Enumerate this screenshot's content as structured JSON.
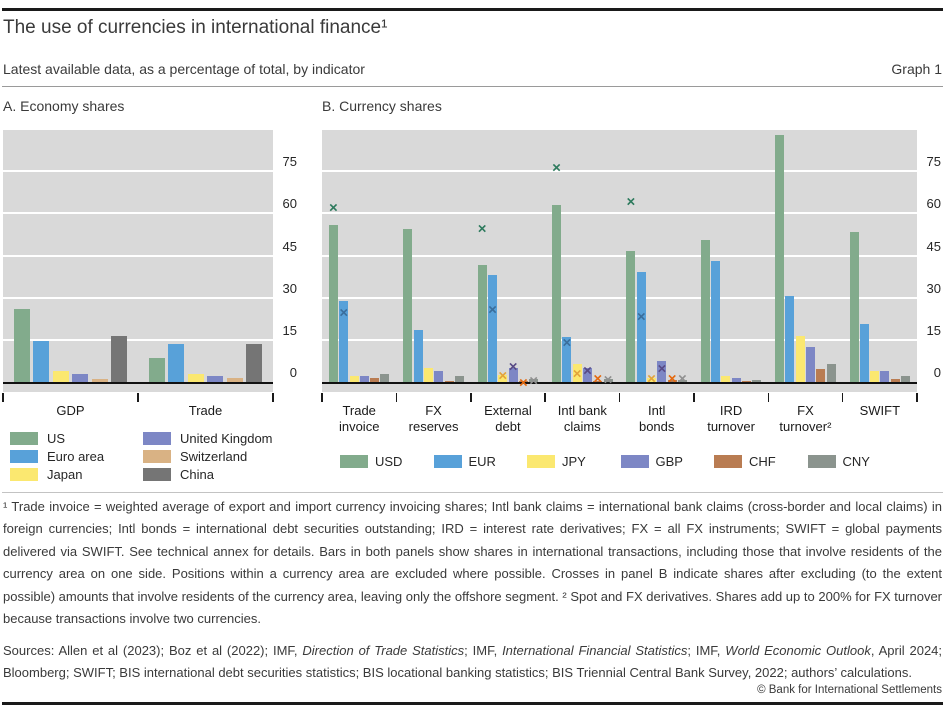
{
  "header": {
    "title": "The use of currencies in international finance¹",
    "subtitle": "Latest available data, as a percentage of total, by indicator",
    "graph_label": "Graph 1"
  },
  "chart_data": [
    {
      "type": "bar",
      "panel": "A",
      "title": "A. Economy shares",
      "categories": [
        "GDP",
        "Trade"
      ],
      "series": [
        {
          "name": "US",
          "color": "#82ab8c",
          "values": [
            26,
            8.5
          ]
        },
        {
          "name": "Euro area",
          "color": "#58a1d9",
          "values": [
            14.5,
            13.5
          ]
        },
        {
          "name": "Japan",
          "color": "#fbe870",
          "values": [
            4,
            3
          ]
        },
        {
          "name": "United Kingdom",
          "color": "#7d87c5",
          "values": [
            3,
            2
          ]
        },
        {
          "name": "Switzerland",
          "color": "#d9b284",
          "values": [
            1,
            1.5
          ]
        },
        {
          "name": "China",
          "color": "#757575",
          "values": [
            16.5,
            13.5
          ]
        }
      ],
      "ylabel": "",
      "ylim": [
        0,
        90
      ],
      "yticks": [
        0,
        15,
        30,
        45,
        60,
        75
      ],
      "grid": true,
      "legend_position": "below-two-columns"
    },
    {
      "type": "bar",
      "panel": "B",
      "title": "B. Currency shares",
      "categories": [
        "Trade invoice",
        "FX reserves",
        "External debt",
        "Intl bank claims",
        "Intl bonds",
        "IRD turnover",
        "FX turnover²",
        "SWIFT"
      ],
      "category_label_lines": [
        [
          "Trade",
          "invoice"
        ],
        [
          "FX",
          "reserves"
        ],
        [
          "External",
          "debt"
        ],
        [
          "Intl bank",
          "claims"
        ],
        [
          "Intl",
          "bonds"
        ],
        [
          "IRD",
          "turnover"
        ],
        [
          "FX",
          "turnover²"
        ],
        [
          "SWIFT"
        ]
      ],
      "series": [
        {
          "name": "USD",
          "color": "#82ab8c",
          "cross_color": "#2d7a5d",
          "values": [
            56,
            54.5,
            41.5,
            63,
            46.5,
            50.5,
            88,
            53.5
          ],
          "crosses": [
            62,
            null,
            54.5,
            76,
            64,
            null,
            null,
            null
          ]
        },
        {
          "name": "EUR",
          "color": "#58a1d9",
          "cross_color": "#3a6e9c",
          "values": [
            29,
            18.5,
            38,
            16,
            39,
            43,
            30.5,
            20.5
          ],
          "crosses": [
            24.5,
            null,
            25.5,
            14,
            23,
            null,
            null,
            null
          ]
        },
        {
          "name": "JPY",
          "color": "#fbe870",
          "cross_color": "#e3a33b",
          "values": [
            2,
            5,
            2.5,
            6.5,
            1.5,
            2,
            16.5,
            4
          ],
          "crosses": [
            null,
            null,
            2,
            3,
            1.2,
            null,
            null,
            null
          ]
        },
        {
          "name": "GBP",
          "color": "#7d87c5",
          "cross_color": "#584a85",
          "values": [
            2,
            4,
            5,
            5,
            7.5,
            1.5,
            12.5,
            4
          ],
          "crosses": [
            null,
            null,
            5.5,
            4,
            4.5,
            null,
            null,
            null
          ]
        },
        {
          "name": "CHF",
          "color": "#b97c52",
          "cross_color": "#e4690f",
          "values": [
            1.5,
            0.2,
            0.3,
            0.4,
            0.7,
            0.3,
            4.5,
            1
          ],
          "crosses": [
            null,
            null,
            -0.5,
            1,
            0.9,
            null,
            null,
            null
          ]
        },
        {
          "name": "CNY",
          "color": "#8b948e",
          "cross_color": "#909090",
          "values": [
            3,
            2,
            1,
            1.2,
            0.6,
            0.7,
            6.5,
            2
          ],
          "crosses": [
            null,
            null,
            0.4,
            0.8,
            1.2,
            null,
            null,
            null
          ]
        }
      ],
      "ylabel": "",
      "ylim": [
        0,
        90
      ],
      "yticks": [
        0,
        15,
        30,
        45,
        60,
        75
      ],
      "grid": true,
      "legend_position": "below-one-row"
    }
  ],
  "footnotes": {
    "text": "¹  Trade invoice = weighted average of export and import currency invoicing shares; Intl bank claims = international bank claims (cross-border and local claims) in foreign currencies; Intl bonds = international debt securities outstanding; IRD = interest rate derivatives; FX = all FX instruments; SWIFT = global payments delivered via SWIFT. See technical annex for details. Bars in both panels show shares in international transactions, including those that involve residents of the currency area on one side. Positions within a currency area are excluded where possible. Crosses in panel B indicate shares after excluding (to the extent possible) amounts that involve residents of the currency area, leaving only the offshore segment.    ²  Spot and FX derivatives. Shares add up to 200% for FX turnover because transactions involve two currencies."
  },
  "sources": {
    "segments": [
      {
        "t": "Sources: Allen et al (2023); Boz et al (2022); IMF, "
      },
      {
        "t": "Direction of Trade Statistics",
        "i": true
      },
      {
        "t": "; IMF, "
      },
      {
        "t": "International Financial Statistics",
        "i": true
      },
      {
        "t": "; IMF, "
      },
      {
        "t": "World Economic Outlook",
        "i": true
      },
      {
        "t": ", April 2024; Bloomberg; SWIFT; BIS international debt securities statistics; BIS locational banking statistics; BIS Triennial Central Bank Survey, 2022; authors’ calculations."
      }
    ]
  },
  "footer": {
    "copyright": "© Bank for International Settlements"
  }
}
